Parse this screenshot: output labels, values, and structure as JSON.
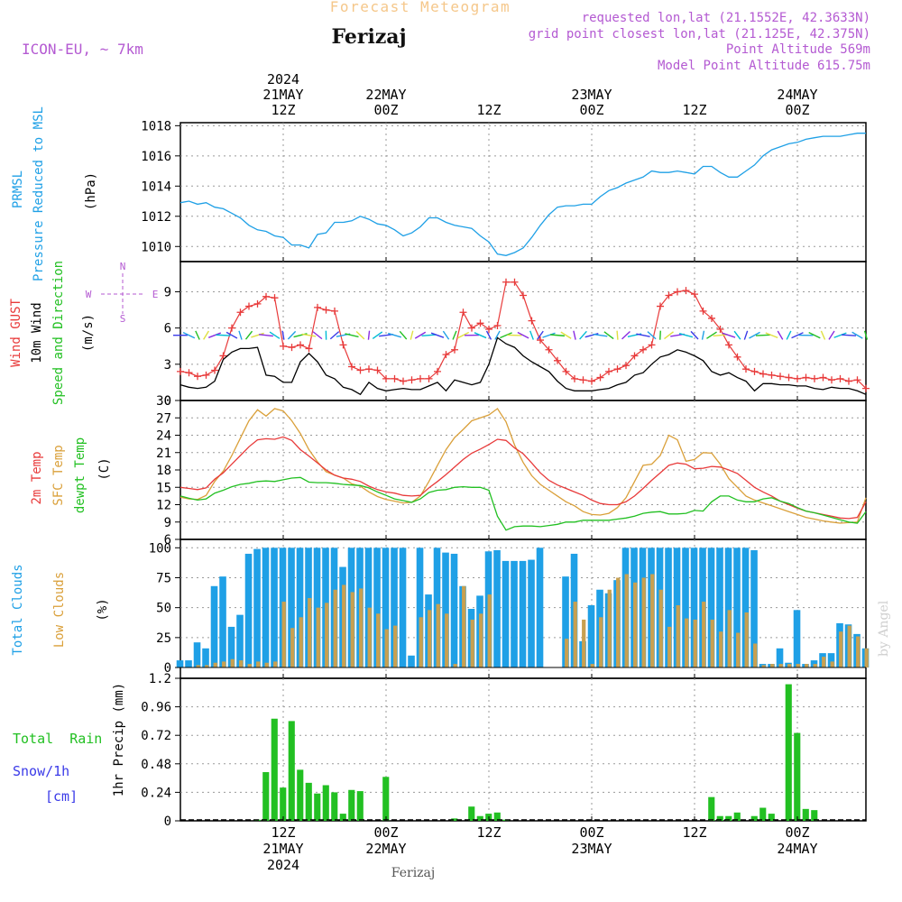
{
  "header": {
    "title": "Forecast Meteogram",
    "location": "Ferizaj",
    "model": "ICON-EU, ~ 7km",
    "requested": "requested lon,lat (21.1552E, 42.3633N)",
    "gridpoint": "grid point closest lon,lat (21.125E, 42.375N)",
    "point_alt": "Point Altitude 569m",
    "model_alt": "Model Point Altitude 615.75m",
    "watermark": "by Angel",
    "footer": "Ferizaj"
  },
  "colors": {
    "pressure": "#1fa0e6",
    "gust": "#e83a3a",
    "wind": "#000000",
    "temp2m": "#e83a3a",
    "sfc": "#daa03a",
    "dewpt": "#22c022",
    "total_clouds": "#1fa0e6",
    "low_clouds": "#c8a050",
    "rain": "#22c022",
    "snow": "#3a3ae8",
    "meta": "#b45ad2",
    "compass": "#b45ad2"
  },
  "time_axis": {
    "top_ticks": [
      {
        "hour": 12,
        "lines": [
          "2024",
          "21MAY",
          "12Z"
        ]
      },
      {
        "hour": 24,
        "lines": [
          "22MAY",
          "00Z"
        ]
      },
      {
        "hour": 36,
        "lines": [
          "12Z"
        ]
      },
      {
        "hour": 48,
        "lines": [
          "23MAY",
          "00Z"
        ]
      },
      {
        "hour": 60,
        "lines": [
          "12Z"
        ]
      },
      {
        "hour": 72,
        "lines": [
          "24MAY",
          "00Z"
        ]
      }
    ],
    "bottom_ticks": [
      {
        "hour": 12,
        "lines": [
          "12Z",
          "21MAY",
          "2024"
        ]
      },
      {
        "hour": 24,
        "lines": [
          "00Z",
          "22MAY"
        ]
      },
      {
        "hour": 36,
        "lines": [
          "12Z"
        ]
      },
      {
        "hour": 48,
        "lines": [
          "00Z",
          "23MAY"
        ]
      },
      {
        "hour": 60,
        "lines": [
          "12Z"
        ]
      },
      {
        "hour": 72,
        "lines": [
          "00Z",
          "24MAY"
        ]
      }
    ]
  },
  "panels": {
    "pressure": {
      "labels": [
        "PRMSL",
        "Pressure Reduced to MSL"
      ],
      "unit": "(hPa)",
      "ticks": [
        "1010",
        "1012",
        "1014",
        "1016",
        "1018"
      ]
    },
    "wind": {
      "labels": [
        "Wind GUST",
        "10m Wind",
        "Speed and Direction"
      ],
      "unit": "(m/s)",
      "ticks": [
        "0",
        "3",
        "6",
        "9"
      ],
      "compass": {
        "n": "N",
        "s": "S",
        "w": "W",
        "e": "E"
      }
    },
    "temp": {
      "labels": [
        "2m Temp",
        "SFC Temp",
        "dewpt Temp"
      ],
      "unit": "(C)",
      "ticks": [
        "6",
        "9",
        "12",
        "15",
        "18",
        "21",
        "24",
        "27",
        "30"
      ]
    },
    "clouds": {
      "labels": [
        "Total Clouds",
        "Low Clouds"
      ],
      "unit": "(%)",
      "ticks": [
        "0",
        "25",
        "50",
        "75",
        "100"
      ]
    },
    "precip": {
      "labels": [
        "Total  Rain",
        "Snow/1h",
        "[cm]"
      ],
      "unit": "1hr Precip (mm)",
      "ticks": [
        "0",
        "0.24",
        "0.48",
        "0.72",
        "0.96",
        "1.2"
      ]
    }
  },
  "chart_data": [
    {
      "type": "line",
      "name": "PRMSL (hPa)",
      "hour_start": 0,
      "hour_step": 1,
      "ylim": [
        1009,
        1018.2
      ],
      "series": [
        {
          "name": "PRMSL",
          "values": [
            1012.9,
            1013.0,
            1012.8,
            1012.9,
            1012.6,
            1012.5,
            1012.2,
            1011.9,
            1011.4,
            1011.1,
            1011.0,
            1010.7,
            1010.6,
            1010.1,
            1010.1,
            1009.9,
            1010.8,
            1010.9,
            1011.6,
            1011.6,
            1011.7,
            1012.0,
            1011.8,
            1011.5,
            1011.4,
            1011.1,
            1010.7,
            1010.9,
            1011.3,
            1011.9,
            1011.9,
            1011.6,
            1011.4,
            1011.3,
            1011.2,
            1010.7,
            1010.3,
            1009.5,
            1009.4,
            1009.6,
            1009.9,
            1010.6,
            1011.4,
            1012.1,
            1012.6,
            1012.7,
            1012.7,
            1012.8,
            1012.8,
            1013.3,
            1013.7,
            1013.9,
            1014.2,
            1014.4,
            1014.6,
            1015.0,
            1014.9,
            1014.9,
            1015.0,
            1014.9,
            1014.8,
            1015.3,
            1015.3,
            1014.9,
            1014.6,
            1014.6,
            1015.0,
            1015.4,
            1016.0,
            1016.4,
            1016.6,
            1016.8,
            1016.9,
            1017.1,
            1017.2,
            1017.3,
            1017.3,
            1017.3,
            1017.4,
            1017.5,
            1017.5
          ]
        }
      ]
    },
    {
      "type": "line",
      "name": "Wind (m/s)",
      "hour_start": 0,
      "hour_step": 1,
      "ylim": [
        0,
        11.5
      ],
      "series": [
        {
          "name": "Wind GUST",
          "values": [
            2.4,
            2.3,
            2.0,
            2.1,
            2.5,
            3.7,
            6.0,
            7.3,
            7.8,
            8.0,
            8.6,
            8.5,
            4.5,
            4.4,
            4.6,
            4.3,
            7.7,
            7.5,
            7.4,
            4.6,
            2.8,
            2.5,
            2.6,
            2.5,
            1.8,
            1.8,
            1.6,
            1.7,
            1.8,
            1.8,
            2.4,
            3.8,
            4.2,
            7.3,
            6.0,
            6.4,
            5.9,
            6.2,
            9.8,
            9.8,
            8.7,
            6.6,
            5.0,
            4.2,
            3.3,
            2.4,
            1.8,
            1.7,
            1.6,
            1.9,
            2.4,
            2.6,
            2.9,
            3.7,
            4.2,
            4.6,
            7.8,
            8.7,
            9.0,
            9.1,
            8.8,
            7.4,
            6.8,
            5.9,
            4.6,
            3.6,
            2.6,
            2.4,
            2.2,
            2.1,
            2.0,
            1.9,
            1.8,
            1.9,
            1.8,
            1.9,
            1.7,
            1.8,
            1.6,
            1.7,
            1.0
          ]
        },
        {
          "name": "10m Wind",
          "values": [
            1.3,
            1.1,
            1.0,
            1.1,
            1.6,
            3.4,
            4.0,
            4.3,
            4.3,
            4.4,
            2.1,
            2.0,
            1.5,
            1.5,
            3.2,
            3.9,
            3.2,
            2.1,
            1.8,
            1.1,
            0.9,
            0.5,
            1.5,
            1.0,
            0.8,
            0.9,
            1.0,
            0.9,
            0.9,
            1.2,
            1.5,
            0.8,
            1.7,
            1.5,
            1.3,
            1.5,
            3.0,
            5.2,
            4.7,
            4.4,
            3.7,
            3.2,
            2.8,
            2.4,
            1.6,
            1.0,
            0.8,
            0.8,
            0.8,
            0.9,
            1.0,
            1.3,
            1.5,
            2.1,
            2.3,
            3.0,
            3.6,
            3.8,
            4.2,
            4.0,
            3.7,
            3.3,
            2.4,
            2.1,
            2.3,
            1.9,
            1.6,
            0.8,
            1.4,
            1.4,
            1.3,
            1.3,
            1.2,
            1.2,
            1.0,
            0.9,
            1.1,
            1.0,
            1.0,
            0.8,
            0.5
          ]
        }
      ]
    },
    {
      "type": "line",
      "name": "Temperature (C)",
      "hour_start": 0,
      "hour_step": 1,
      "ylim": [
        6,
        30
      ],
      "series": [
        {
          "name": "2m Temp",
          "values": [
            15.0,
            14.8,
            14.6,
            14.9,
            16.4,
            17.5,
            19.0,
            20.5,
            22.0,
            23.2,
            23.4,
            23.3,
            23.7,
            23.1,
            21.5,
            20.4,
            19.2,
            18.0,
            17.1,
            16.6,
            16.4,
            16.0,
            15.2,
            14.6,
            14.2,
            14.0,
            13.6,
            13.5,
            13.6,
            14.9,
            16.0,
            17.2,
            18.5,
            19.8,
            20.9,
            21.6,
            22.4,
            23.3,
            23.1,
            21.8,
            20.8,
            19.2,
            17.5,
            16.2,
            15.4,
            14.8,
            14.2,
            13.6,
            12.8,
            12.2,
            12.0,
            12.0,
            12.5,
            13.5,
            14.8,
            16.2,
            17.5,
            18.8,
            19.2,
            19.0,
            18.2,
            18.3,
            18.6,
            18.5,
            18.0,
            17.4,
            16.2,
            15.0,
            14.2,
            13.5,
            12.6,
            12.0,
            11.4,
            10.9,
            10.6,
            10.3,
            10.0,
            9.7,
            9.6,
            9.8,
            12.5
          ]
        },
        {
          "name": "SFC Temp",
          "values": [
            13.3,
            13.0,
            12.9,
            13.6,
            16.0,
            17.8,
            20.5,
            23.5,
            26.5,
            28.4,
            27.3,
            28.6,
            28.2,
            26.5,
            24.3,
            21.5,
            19.4,
            17.7,
            17.1,
            16.6,
            15.6,
            15.2,
            14.2,
            13.4,
            12.9,
            12.6,
            12.3,
            12.4,
            13.5,
            16.0,
            18.8,
            21.5,
            23.6,
            25.0,
            26.5,
            27.0,
            27.5,
            28.6,
            26.3,
            22.3,
            19.3,
            17.0,
            15.5,
            14.5,
            13.5,
            12.5,
            11.8,
            10.8,
            10.3,
            10.2,
            10.5,
            11.5,
            13.2,
            16.0,
            18.8,
            19.0,
            20.5,
            24.0,
            23.2,
            19.5,
            19.8,
            21.0,
            20.9,
            19.0,
            16.5,
            15.0,
            13.5,
            12.8,
            12.3,
            11.8,
            11.3,
            10.8,
            10.3,
            9.8,
            9.5,
            9.2,
            9.0,
            8.8,
            8.9,
            9.0,
            13.2
          ]
        },
        {
          "name": "dewpt Temp",
          "values": [
            13.5,
            13.1,
            12.8,
            13.0,
            14.0,
            14.5,
            15.1,
            15.5,
            15.7,
            16.0,
            16.1,
            16.0,
            16.3,
            16.6,
            16.7,
            15.9,
            15.8,
            15.8,
            15.7,
            15.5,
            15.4,
            15.3,
            14.9,
            14.2,
            13.6,
            13.0,
            12.7,
            12.4,
            13.0,
            14.1,
            14.5,
            14.6,
            15.0,
            15.1,
            15.0,
            15.0,
            14.5,
            10.0,
            7.6,
            8.2,
            8.3,
            8.3,
            8.2,
            8.4,
            8.6,
            9.0,
            9.0,
            9.3,
            9.3,
            9.3,
            9.3,
            9.5,
            9.7,
            10.0,
            10.5,
            10.7,
            10.8,
            10.4,
            10.4,
            10.5,
            11.0,
            10.9,
            12.5,
            13.5,
            13.5,
            12.8,
            12.5,
            12.5,
            13.0,
            13.2,
            12.6,
            12.2,
            11.5,
            10.9,
            10.6,
            10.2,
            9.8,
            9.4,
            9.0,
            8.8,
            10.8
          ]
        }
      ]
    },
    {
      "type": "bar",
      "name": "Clouds (%)",
      "hour_start": 0,
      "hour_step": 1,
      "ylim": [
        0,
        100
      ],
      "series": [
        {
          "name": "Total Clouds",
          "values": [
            6,
            6,
            21,
            16,
            68,
            76,
            34,
            44,
            95,
            99,
            100,
            100,
            100,
            100,
            100,
            100,
            100,
            100,
            100,
            84,
            100,
            100,
            100,
            100,
            100,
            100,
            100,
            10,
            100,
            61,
            100,
            96,
            95,
            68,
            49,
            60,
            97,
            98,
            89,
            89,
            89,
            90,
            100,
            0,
            0,
            76,
            95,
            22,
            52,
            65,
            62,
            73,
            100,
            100,
            100,
            100,
            100,
            100,
            100,
            100,
            100,
            100,
            100,
            100,
            100,
            100,
            100,
            98,
            3,
            3,
            16,
            4,
            48,
            3,
            6,
            12,
            12,
            37,
            36,
            28,
            16
          ]
        },
        {
          "name": "Low Clouds",
          "values": [
            0,
            0,
            2,
            2,
            4,
            5,
            7,
            6,
            3,
            5,
            4,
            5,
            55,
            33,
            42,
            58,
            50,
            54,
            65,
            69,
            63,
            66,
            50,
            45,
            32,
            35,
            0,
            0,
            42,
            48,
            53,
            45,
            3,
            68,
            40,
            45,
            61,
            0,
            0,
            0,
            0,
            0,
            0,
            0,
            0,
            24,
            55,
            40,
            3,
            42,
            65,
            75,
            78,
            71,
            75,
            78,
            65,
            34,
            52,
            41,
            40,
            55,
            40,
            30,
            48,
            29,
            46,
            20,
            2,
            3,
            3,
            3,
            3,
            3,
            3,
            9,
            5,
            30,
            35,
            26,
            16
          ]
        }
      ]
    },
    {
      "type": "bar",
      "name": "1hr Precip (mm)",
      "hour_start": 0,
      "hour_step": 1,
      "ylim": [
        0,
        1.2
      ],
      "series": [
        {
          "name": "Total Rain",
          "values": [
            0,
            0,
            0,
            0,
            0,
            0,
            0,
            0,
            0,
            0.01,
            0.41,
            0.86,
            0.28,
            0.84,
            0.43,
            0.32,
            0.23,
            0.3,
            0.24,
            0.06,
            0.26,
            0.25,
            0,
            0,
            0.37,
            0,
            0,
            0,
            0,
            0,
            0,
            0,
            0.02,
            0,
            0.12,
            0.04,
            0.06,
            0.07,
            0.01,
            0,
            0,
            0,
            0,
            0,
            0,
            0,
            0,
            0,
            0,
            0,
            0,
            0,
            0,
            0,
            0,
            0,
            0,
            0,
            0,
            0,
            0,
            0,
            0.2,
            0.04,
            0.04,
            0.07,
            0,
            0.04,
            0.11,
            0.06,
            0,
            1.15,
            0.74,
            0.1,
            0.09,
            0,
            0,
            0,
            0,
            0,
            0
          ]
        },
        {
          "name": "Snow/1h",
          "values": []
        }
      ]
    }
  ]
}
